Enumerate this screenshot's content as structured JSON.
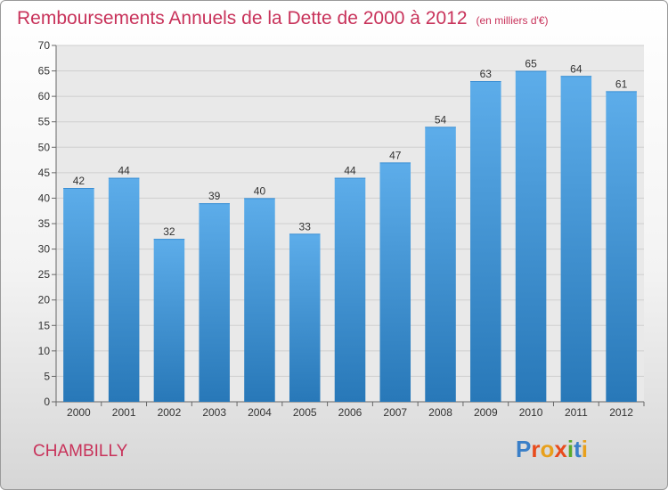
{
  "chart_data": {
    "type": "bar",
    "title": "Remboursements Annuels de la Dette de 2000 à 2012",
    "unit": "(en milliers d'€)",
    "categories": [
      "2000",
      "2001",
      "2002",
      "2003",
      "2004",
      "2005",
      "2006",
      "2007",
      "2008",
      "2009",
      "2010",
      "2011",
      "2012"
    ],
    "values": [
      42,
      44,
      32,
      39,
      40,
      33,
      44,
      47,
      54,
      63,
      65,
      64,
      61
    ],
    "ylim": [
      0,
      70
    ],
    "yticks": [
      0,
      5,
      10,
      15,
      20,
      25,
      30,
      35,
      40,
      45,
      50,
      55,
      60,
      65,
      70
    ],
    "grid": true,
    "bar_color_top": "#5dadea",
    "bar_color_bottom": "#2878b8"
  },
  "footer": {
    "town": "CHAMBILLY",
    "logo_letters": [
      "P",
      "r",
      "o",
      "x",
      "i",
      "t",
      "i"
    ],
    "logo_colors": [
      "#3a7fc8",
      "#e84b1c",
      "#e8a01c",
      "#e84b1c",
      "#5aaa2a",
      "#3a7fc8",
      "#e8a01c"
    ]
  },
  "colors": {
    "title": "#c8325a",
    "grid": "#cfcfcf",
    "plot_bg": "#e9e9e9"
  }
}
